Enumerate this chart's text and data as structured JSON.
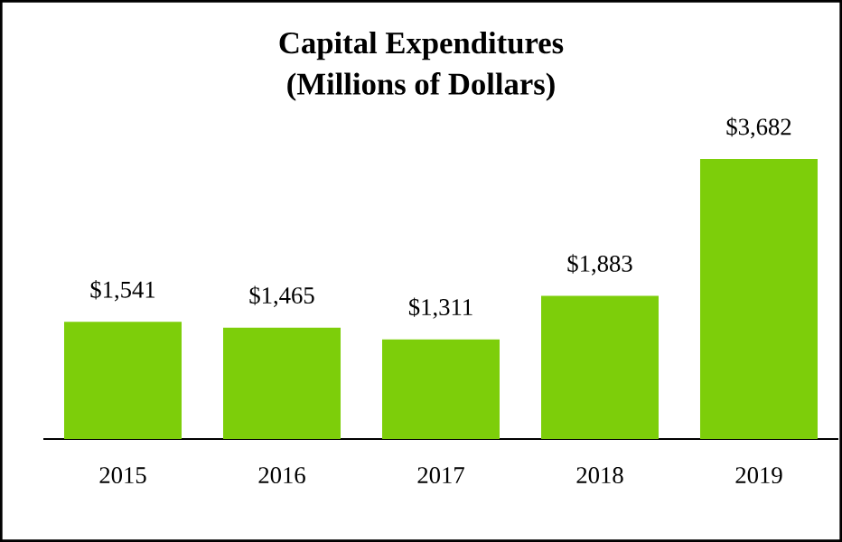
{
  "chart_data": {
    "type": "bar",
    "title": "Capital Expenditures",
    "subtitle": "(Millions of Dollars)",
    "categories": [
      "2015",
      "2016",
      "2017",
      "2018",
      "2019"
    ],
    "values": [
      1541,
      1465,
      1311,
      1883,
      3682
    ],
    "value_labels": [
      "$1,541",
      "$1,465",
      "$1,311",
      "$1,883",
      "$3,682"
    ],
    "color": "#7dce0a"
  }
}
